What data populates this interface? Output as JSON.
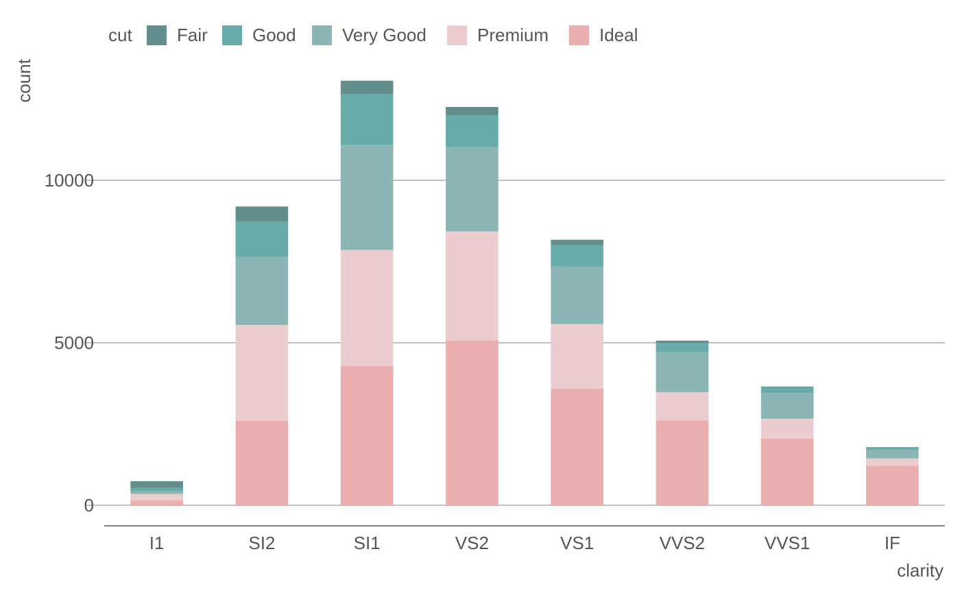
{
  "chart_data": {
    "type": "bar",
    "stacked": true,
    "title": "",
    "xlabel": "clarity",
    "ylabel": "count",
    "categories": [
      "I1",
      "SI2",
      "SI1",
      "VS2",
      "VS1",
      "VVS2",
      "VVS1",
      "IF"
    ],
    "ylim": [
      -1100,
      13700
    ],
    "yticks": [
      0,
      5000,
      10000
    ],
    "ytick_labels": [
      "0",
      "5000",
      "10000"
    ],
    "grid": "horizontal major lines",
    "legend": {
      "title": "cut",
      "position": "top-left",
      "entries": [
        "Fair",
        "Good",
        "Very Good",
        "Premium",
        "Ideal"
      ]
    },
    "series": [
      {
        "name": "Ideal",
        "color": "#EAAEAE",
        "values": [
          146,
          2598,
          4282,
          5071,
          3589,
          2606,
          2047,
          1212
        ]
      },
      {
        "name": "Premium",
        "color": "#EBCDCF",
        "values": [
          205,
          2949,
          3575,
          3357,
          1989,
          870,
          616,
          230
        ]
      },
      {
        "name": "Very Good",
        "color": "#8BB6B5",
        "values": [
          84,
          2100,
          3240,
          2591,
          1775,
          1235,
          789,
          268
        ]
      },
      {
        "name": "Good",
        "color": "#67ABAA",
        "values": [
          96,
          1081,
          1560,
          978,
          648,
          286,
          186,
          71
        ]
      },
      {
        "name": "Fair",
        "color": "#628F8C",
        "values": [
          210,
          466,
          408,
          261,
          170,
          69,
          17,
          9
        ]
      }
    ]
  }
}
